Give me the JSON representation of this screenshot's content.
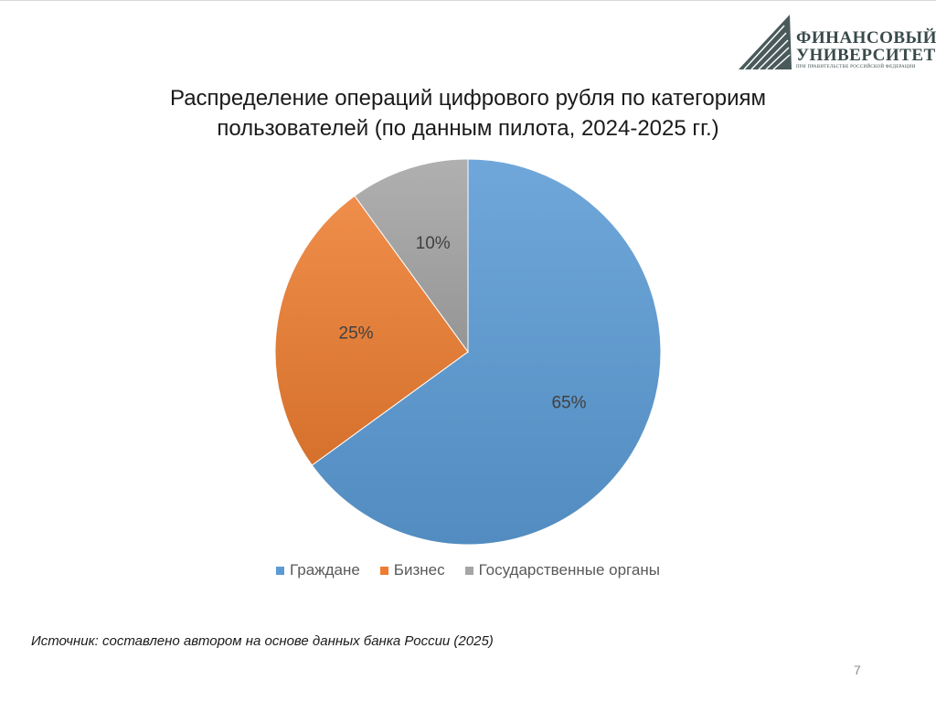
{
  "logo": {
    "line1": "ФИНАНСОВЫЙ",
    "line2": "УНИВЕРСИТЕТ",
    "line3": "ПРИ ПРАВИТЕЛЬСТВЕ РОССИЙСКОЙ ФЕДЕРАЦИИ",
    "color": "#3a4a4a"
  },
  "chart_data": {
    "type": "pie",
    "title": "Распределение операций цифрового рубля по категориям пользователей (по данным пилота, 2024-2025 гг.)",
    "title_line1": "Распределение операций цифрового рубля по категориям",
    "title_line2": "пользователей (по данным пилота, 2024-2025 гг.)",
    "categories": [
      "Граждане",
      "Бизнес",
      "Государственные органы"
    ],
    "values": [
      65,
      25,
      10
    ],
    "labels": [
      "65%",
      "25%",
      "10%"
    ],
    "colors": [
      "#5b9bd5",
      "#ed7d31",
      "#a5a5a5"
    ],
    "legend_position": "bottom"
  },
  "source_text": "Источник: составлено автором на основе данных банка России (2025)",
  "page_number": "7"
}
